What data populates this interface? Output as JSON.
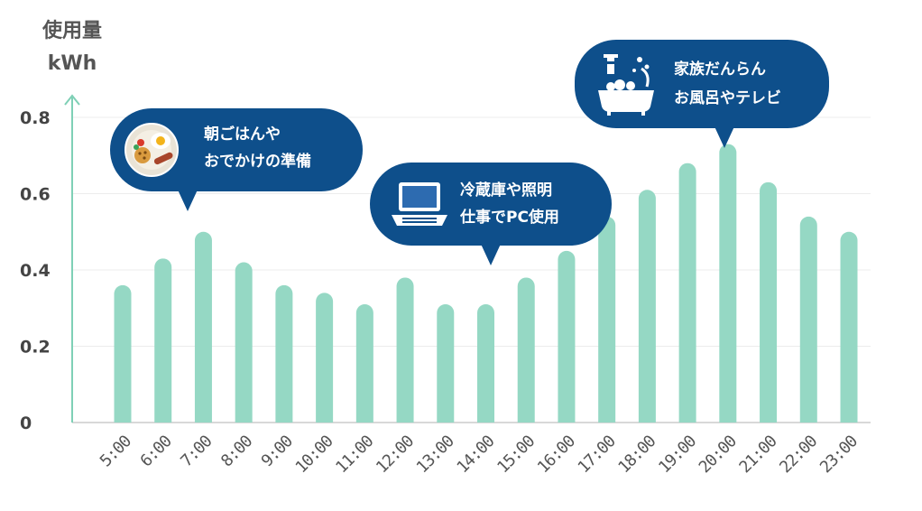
{
  "chart_data": {
    "type": "bar",
    "ylabel_line1": "使用量",
    "ylabel_line2": "kWh",
    "ylim": [
      0,
      0.8
    ],
    "yticks": [
      "0",
      "0.2",
      "0.4",
      "0.6",
      "0.8"
    ],
    "grid": true,
    "categories": [
      "5:00",
      "6:00",
      "7:00",
      "8:00",
      "9:00",
      "10:00",
      "11:00",
      "12:00",
      "13:00",
      "14:00",
      "15:00",
      "16:00",
      "17:00",
      "18:00",
      "19:00",
      "20:00",
      "21:00",
      "22:00",
      "23:00"
    ],
    "values": [
      0.36,
      0.43,
      0.5,
      0.42,
      0.36,
      0.34,
      0.31,
      0.38,
      0.31,
      0.31,
      0.38,
      0.45,
      0.54,
      0.61,
      0.68,
      0.73,
      0.63,
      0.54,
      0.5
    ],
    "bar_color": "#95d8c4",
    "axis_color": "#7fd0b6",
    "annotations": [
      {
        "line1": "朝ごはんや",
        "line2": "おでかけの準備",
        "icon": "breakfast-plate-icon"
      },
      {
        "line1": "冷蔵庫や照明",
        "line2": "仕事でPC使用",
        "icon": "laptop-icon"
      },
      {
        "line1": "家族だんらん",
        "line2": "お風呂やテレビ",
        "icon": "bathtub-icon"
      }
    ],
    "callout_color": "#0e4f8b"
  }
}
